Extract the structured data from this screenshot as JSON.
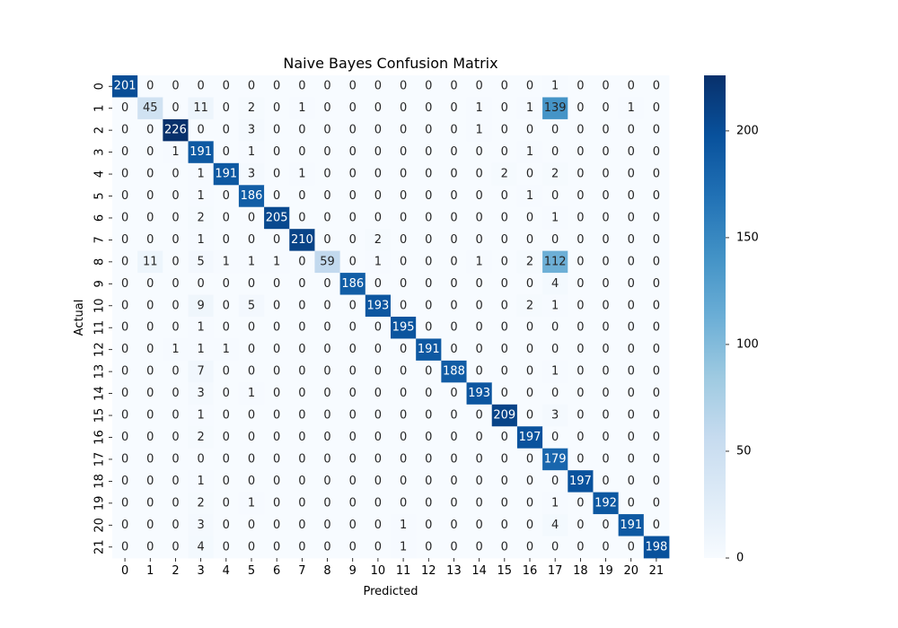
{
  "chart_data": {
    "type": "heatmap",
    "title": "Naive Bayes Confusion Matrix",
    "xlabel": "Predicted",
    "ylabel": "Actual",
    "x_categories": [
      "0",
      "1",
      "2",
      "3",
      "4",
      "5",
      "6",
      "7",
      "8",
      "9",
      "10",
      "11",
      "12",
      "13",
      "14",
      "15",
      "16",
      "17",
      "18",
      "19",
      "20",
      "21"
    ],
    "y_categories": [
      "0",
      "1",
      "2",
      "3",
      "4",
      "5",
      "6",
      "7",
      "8",
      "9",
      "10",
      "11",
      "12",
      "13",
      "14",
      "15",
      "16",
      "17",
      "18",
      "19",
      "20",
      "21"
    ],
    "matrix": [
      [
        201,
        0,
        0,
        0,
        0,
        0,
        0,
        0,
        0,
        0,
        0,
        0,
        0,
        0,
        0,
        0,
        0,
        1,
        0,
        0,
        0,
        0
      ],
      [
        0,
        45,
        0,
        11,
        0,
        2,
        0,
        1,
        0,
        0,
        0,
        0,
        0,
        0,
        1,
        0,
        1,
        139,
        0,
        0,
        1,
        0
      ],
      [
        0,
        0,
        226,
        0,
        0,
        3,
        0,
        0,
        0,
        0,
        0,
        0,
        0,
        0,
        1,
        0,
        0,
        0,
        0,
        0,
        0,
        0
      ],
      [
        0,
        0,
        1,
        191,
        0,
        1,
        0,
        0,
        0,
        0,
        0,
        0,
        0,
        0,
        0,
        0,
        1,
        0,
        0,
        0,
        0,
        0
      ],
      [
        0,
        0,
        0,
        1,
        191,
        3,
        0,
        1,
        0,
        0,
        0,
        0,
        0,
        0,
        0,
        2,
        0,
        2,
        0,
        0,
        0,
        0
      ],
      [
        0,
        0,
        0,
        1,
        0,
        186,
        0,
        0,
        0,
        0,
        0,
        0,
        0,
        0,
        0,
        0,
        1,
        0,
        0,
        0,
        0,
        0
      ],
      [
        0,
        0,
        0,
        2,
        0,
        0,
        205,
        0,
        0,
        0,
        0,
        0,
        0,
        0,
        0,
        0,
        0,
        1,
        0,
        0,
        0,
        0
      ],
      [
        0,
        0,
        0,
        1,
        0,
        0,
        0,
        210,
        0,
        0,
        2,
        0,
        0,
        0,
        0,
        0,
        0,
        0,
        0,
        0,
        0,
        0
      ],
      [
        0,
        11,
        0,
        5,
        1,
        1,
        1,
        0,
        59,
        0,
        1,
        0,
        0,
        0,
        1,
        0,
        2,
        112,
        0,
        0,
        0,
        0
      ],
      [
        0,
        0,
        0,
        0,
        0,
        0,
        0,
        0,
        0,
        186,
        0,
        0,
        0,
        0,
        0,
        0,
        0,
        4,
        0,
        0,
        0,
        0
      ],
      [
        0,
        0,
        0,
        9,
        0,
        5,
        0,
        0,
        0,
        0,
        193,
        0,
        0,
        0,
        0,
        0,
        2,
        1,
        0,
        0,
        0,
        0
      ],
      [
        0,
        0,
        0,
        1,
        0,
        0,
        0,
        0,
        0,
        0,
        0,
        195,
        0,
        0,
        0,
        0,
        0,
        0,
        0,
        0,
        0,
        0
      ],
      [
        0,
        0,
        1,
        1,
        1,
        0,
        0,
        0,
        0,
        0,
        0,
        0,
        191,
        0,
        0,
        0,
        0,
        0,
        0,
        0,
        0,
        0
      ],
      [
        0,
        0,
        0,
        7,
        0,
        0,
        0,
        0,
        0,
        0,
        0,
        0,
        0,
        188,
        0,
        0,
        0,
        1,
        0,
        0,
        0,
        0
      ],
      [
        0,
        0,
        0,
        3,
        0,
        1,
        0,
        0,
        0,
        0,
        0,
        0,
        0,
        0,
        193,
        0,
        0,
        0,
        0,
        0,
        0,
        0
      ],
      [
        0,
        0,
        0,
        1,
        0,
        0,
        0,
        0,
        0,
        0,
        0,
        0,
        0,
        0,
        0,
        209,
        0,
        3,
        0,
        0,
        0,
        0
      ],
      [
        0,
        0,
        0,
        2,
        0,
        0,
        0,
        0,
        0,
        0,
        0,
        0,
        0,
        0,
        0,
        0,
        197,
        0,
        0,
        0,
        0,
        0
      ],
      [
        0,
        0,
        0,
        0,
        0,
        0,
        0,
        0,
        0,
        0,
        0,
        0,
        0,
        0,
        0,
        0,
        0,
        179,
        0,
        0,
        0,
        0
      ],
      [
        0,
        0,
        0,
        1,
        0,
        0,
        0,
        0,
        0,
        0,
        0,
        0,
        0,
        0,
        0,
        0,
        0,
        0,
        197,
        0,
        0,
        0
      ],
      [
        0,
        0,
        0,
        2,
        0,
        1,
        0,
        0,
        0,
        0,
        0,
        0,
        0,
        0,
        0,
        0,
        0,
        1,
        0,
        192,
        0,
        0
      ],
      [
        0,
        0,
        0,
        3,
        0,
        0,
        0,
        0,
        0,
        0,
        0,
        1,
        0,
        0,
        0,
        0,
        0,
        4,
        0,
        0,
        191,
        0
      ],
      [
        0,
        0,
        0,
        4,
        0,
        0,
        0,
        0,
        0,
        0,
        0,
        1,
        0,
        0,
        0,
        0,
        0,
        0,
        0,
        0,
        0,
        198
      ]
    ],
    "colormap": "Blues",
    "colorbar": {
      "min": 0,
      "max": 226,
      "ticks": [
        0,
        50,
        100,
        150,
        200
      ]
    },
    "annotations": true,
    "grid": false
  }
}
